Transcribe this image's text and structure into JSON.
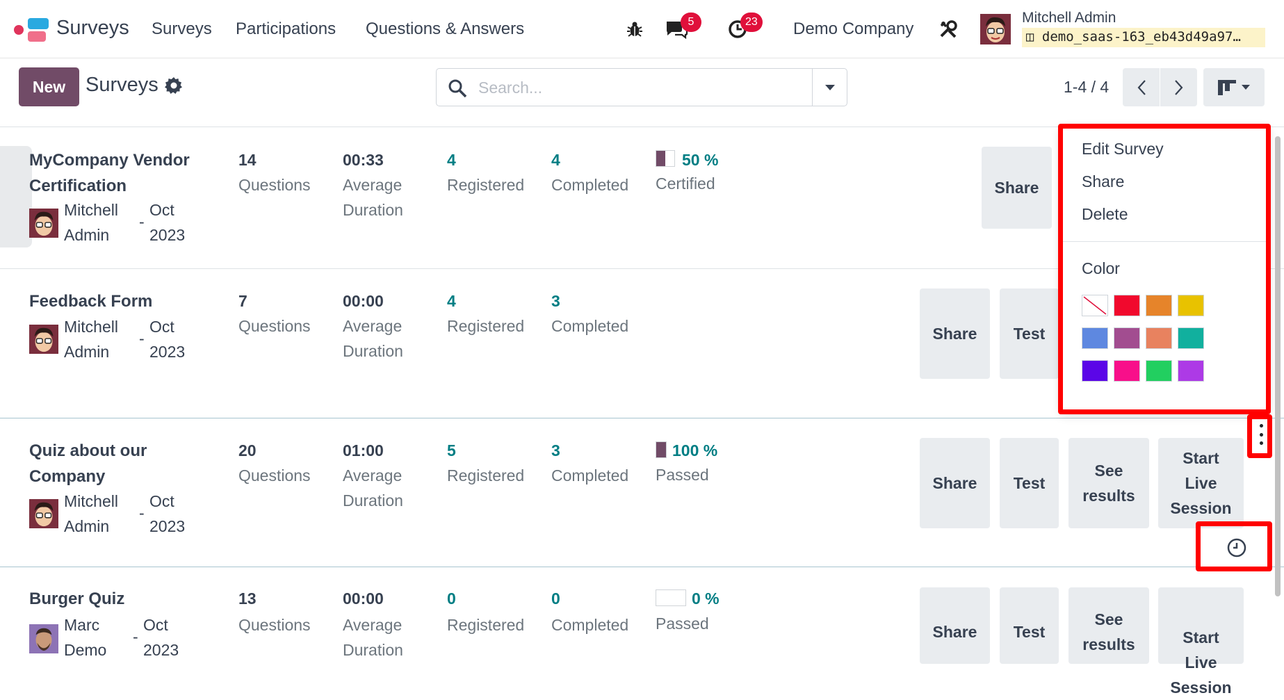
{
  "navbar": {
    "app_name": "Surveys",
    "menu": [
      "Surveys",
      "Participations",
      "Questions & Answers"
    ],
    "messages_count": "5",
    "activities_count": "23",
    "company": "Demo Company",
    "user_name": "Mitchell Admin",
    "db_name": "demo_saas-163_eb43d49a97…"
  },
  "control": {
    "new_label": "New",
    "title": "Surveys",
    "search_placeholder": "Search...",
    "pager": "1-4 / 4"
  },
  "surveys": [
    {
      "title": "MyCompany Vendor Certification",
      "person_first": "Mitchell",
      "person_last": "Admin",
      "date_month": "Oct",
      "date_year": "2023",
      "questions": "14",
      "questions_label": "Questions",
      "duration": "00:33",
      "duration_label1": "Average",
      "duration_label2": "Duration",
      "registered": "4",
      "registered_label": "Registered",
      "completed": "4",
      "completed_label": "Completed",
      "score": "50 %",
      "score_fraction": 0.5,
      "score_label": "Certified",
      "buttons": [
        "Share"
      ]
    },
    {
      "title": "Feedback Form",
      "person_first": "Mitchell",
      "person_last": "Admin",
      "date_month": "Oct",
      "date_year": "2023",
      "questions": "7",
      "questions_label": "Questions",
      "duration": "00:00",
      "duration_label1": "Average",
      "duration_label2": "Duration",
      "registered": "4",
      "registered_label": "Registered",
      "completed": "3",
      "completed_label": "Completed",
      "buttons": [
        "Share",
        "Test"
      ]
    },
    {
      "title": "Quiz about our Company",
      "person_first": "Mitchell",
      "person_last": "Admin",
      "date_month": "Oct",
      "date_year": "2023",
      "questions": "20",
      "questions_label": "Questions",
      "duration": "01:00",
      "duration_label1": "Average",
      "duration_label2": "Duration",
      "registered": "5",
      "registered_label": "Registered",
      "completed": "3",
      "completed_label": "Completed",
      "score": "100 %",
      "score_fraction": 1.0,
      "score_label": "Passed",
      "buttons": [
        "Share",
        "Test",
        "See results",
        "Start Live Session"
      ]
    },
    {
      "title": "Burger Quiz",
      "person_first": "Marc",
      "person_last": "Demo",
      "date_month": "Oct",
      "date_year": "2023",
      "questions": "13",
      "questions_label": "Questions",
      "duration": "00:00",
      "duration_label1": "Average",
      "duration_label2": "Duration",
      "registered": "0",
      "registered_label": "Registered",
      "completed": "0",
      "completed_label": "Completed",
      "score": "0 %",
      "score_fraction": 0.0,
      "score_label": "Passed",
      "buttons": [
        "Share",
        "Test",
        "See results",
        "Start Live Session"
      ]
    }
  ],
  "dropdown": {
    "items": [
      "Edit Survey",
      "Share",
      "Delete"
    ],
    "color_label": "Color",
    "colors": [
      "none",
      "#f1092d",
      "#e6842a",
      "#e8c200",
      "#5e88e0",
      "#a24d90",
      "#e8825f",
      "#11b09e",
      "#5b06e7",
      "#f80f8a",
      "#22cf60",
      "#ad3ae6"
    ]
  }
}
